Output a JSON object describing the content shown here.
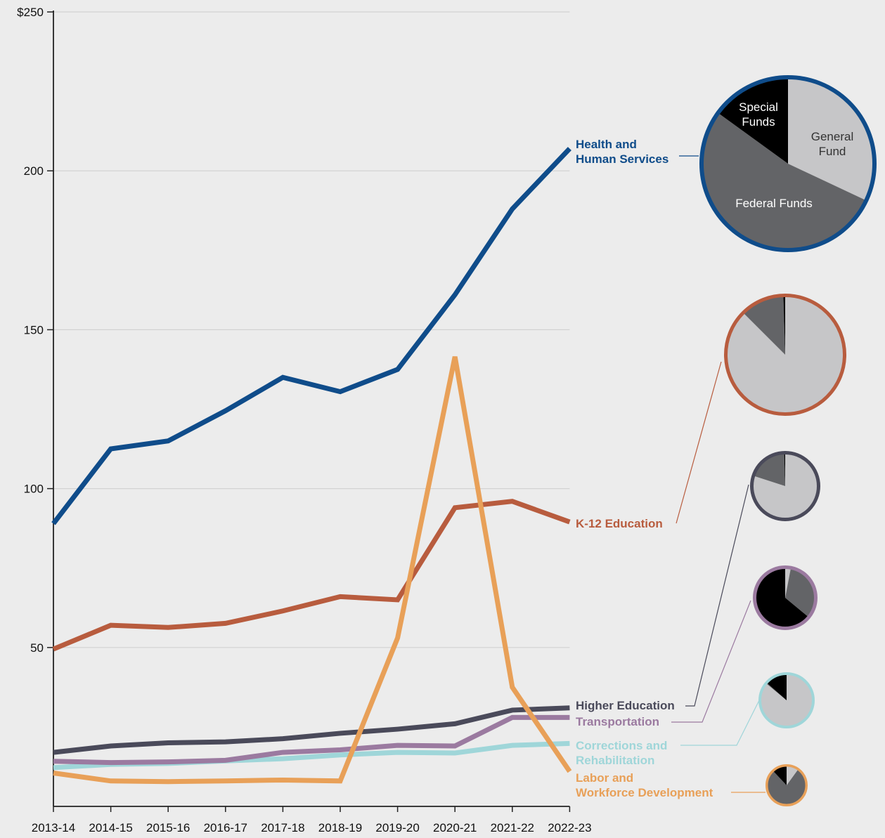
{
  "chart_data": {
    "type": "line",
    "title": "",
    "xlabel": "",
    "ylabel": "",
    "ylim": [
      0,
      250
    ],
    "y_ticks": [
      "$250",
      "200",
      "150",
      "100",
      "50"
    ],
    "y_tick_values": [
      250,
      200,
      150,
      100,
      50
    ],
    "grid": true,
    "categories": [
      "2013-14",
      "2014-15",
      "2015-16",
      "2016-17",
      "2017-18",
      "2018-19",
      "2019-20",
      "2020-21",
      "2021-22",
      "2022-23"
    ],
    "series": [
      {
        "name": "Health and Human Services",
        "label_lines": [
          "Health and",
          "Human Services"
        ],
        "color": "#0f4c8a",
        "values": [
          89,
          112.5,
          115,
          124.5,
          135,
          130.5,
          137.5,
          161,
          188,
          207
        ],
        "pie": {
          "general_fund": 0.32,
          "federal_funds": 0.53,
          "special_funds": 0.15,
          "labels": {
            "special_funds": [
              "Special",
              "Funds"
            ],
            "general_fund": [
              "General",
              "Fund"
            ],
            "federal_funds": [
              "Federal Funds"
            ]
          }
        }
      },
      {
        "name": "K-12 Education",
        "label_lines": [
          "K-12 Education"
        ],
        "color": "#b85c3e",
        "values": [
          49.5,
          57,
          56.3,
          57.6,
          61.5,
          66,
          65,
          94,
          96,
          89.5
        ],
        "pie": {
          "general_fund": 0.875,
          "federal_funds": 0.12,
          "special_funds": 0.005
        }
      },
      {
        "name": "Higher Education",
        "label_lines": [
          "Higher Education"
        ],
        "color": "#4a4a5a",
        "values": [
          17,
          19,
          20,
          20.3,
          21.3,
          23,
          24.3,
          26,
          30.3,
          31
        ],
        "pie": {
          "general_fund": 0.8,
          "federal_funds": 0.195,
          "special_funds": 0.005
        }
      },
      {
        "name": "Transportation",
        "label_lines": [
          "Transportation"
        ],
        "color": "#9b7aa0",
        "values": [
          14.2,
          13.8,
          14,
          14.5,
          17,
          17.8,
          19.2,
          19,
          28,
          28
        ],
        "pie": {
          "general_fund": 0.03,
          "federal_funds": 0.33,
          "special_funds": 0.64
        }
      },
      {
        "name": "Corrections and Rehabilitation",
        "label_lines": [
          "Corrections and",
          "Rehabilitation"
        ],
        "color": "#9fd6d9",
        "values": [
          12.2,
          13.2,
          13.5,
          14.3,
          15,
          16.2,
          17,
          16.8,
          19.2,
          19.8
        ],
        "pie": {
          "general_fund": 0.86,
          "federal_funds": 0.005,
          "special_funds": 0.135
        }
      },
      {
        "name": "Labor and Workforce Development",
        "label_lines": [
          "Labor and",
          "Workforce Development"
        ],
        "color": "#e8a058",
        "values": [
          10.5,
          8,
          7.8,
          8,
          8.3,
          8,
          53,
          141.5,
          37.5,
          11
        ],
        "pie": {
          "general_fund": 0.1,
          "federal_funds": 0.78,
          "special_funds": 0.12
        }
      }
    ],
    "pie_colors": {
      "general_fund": "#c6c6c8",
      "federal_funds": "#636467",
      "special_funds": "#000000"
    }
  }
}
